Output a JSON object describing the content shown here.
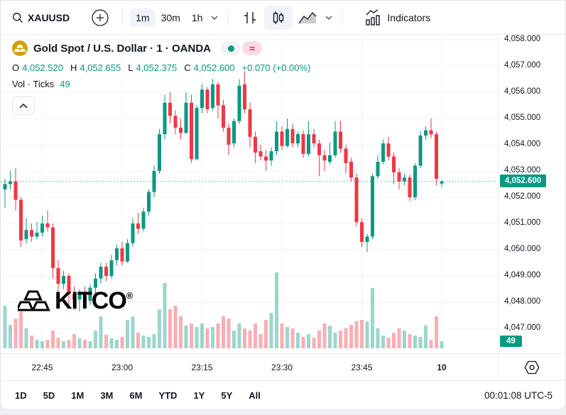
{
  "header": {
    "symbol": "XAUUSD",
    "timeframes": [
      "1m",
      "30m",
      "1h"
    ],
    "selected_timeframe": "1m",
    "indicators_label": "Indicators"
  },
  "legend": {
    "title": "Gold Spot / U.S. Dollar · 1 · OANDA",
    "status_approx": "≈",
    "ohlc": {
      "o_label": "O",
      "o_value": "4,052.520",
      "h_label": "H",
      "h_value": "4,052.655",
      "l_label": "L",
      "l_value": "4,052.375",
      "c_label": "C",
      "c_value": "4,052.600",
      "change": "+0.070 (+0.00%)"
    },
    "vol_label": "Vol · Ticks",
    "vol_value": "49"
  },
  "watermark": {
    "text": "KITCO",
    "reg": "®"
  },
  "price_scale": {
    "current": {
      "label": "4,052.600",
      "value": 4052.6
    },
    "volume_badge": "49",
    "ticks": [
      {
        "label": "4,058.000",
        "value": 4058
      },
      {
        "label": "4,057.000",
        "value": 4057
      },
      {
        "label": "4,056.000",
        "value": 4056
      },
      {
        "label": "4,055.000",
        "value": 4055
      },
      {
        "label": "4,054.000",
        "value": 4054
      },
      {
        "label": "4,053.000",
        "value": 4053
      },
      {
        "label": "4,052.000",
        "value": 4052
      },
      {
        "label": "4,051.000",
        "value": 4051
      },
      {
        "label": "4,050.000",
        "value": 4050
      },
      {
        "label": "4,049.000",
        "value": 4049
      },
      {
        "label": "4,048.000",
        "value": 4048
      },
      {
        "label": "4,047.000",
        "value": 4047
      }
    ]
  },
  "time_scale": {
    "labels": [
      {
        "text": "22:45",
        "idx": 7,
        "bold": false
      },
      {
        "text": "23:00",
        "idx": 22,
        "bold": false
      },
      {
        "text": "23:15",
        "idx": 37,
        "bold": false
      },
      {
        "text": "23:30",
        "idx": 52,
        "bold": false
      },
      {
        "text": "23:45",
        "idx": 67,
        "bold": false
      },
      {
        "text": "10",
        "idx": 82,
        "bold": true
      }
    ]
  },
  "footer": {
    "ranges": [
      "1D",
      "5D",
      "1M",
      "3M",
      "6M",
      "YTD",
      "1Y",
      "5Y",
      "All"
    ],
    "clock": "00:01:08 UTC-5"
  },
  "colors": {
    "up": "#089981",
    "down": "#f23645",
    "vol_up": "rgba(8,153,129,0.40)",
    "vol_down": "rgba(242,54,69,0.40)",
    "grid": "#f0f3fa",
    "badge_bg": "#089981",
    "gold": "#d2a106"
  },
  "chart_data": {
    "type": "candlestick",
    "title": "Gold Spot / U.S. Dollar · 1 · OANDA",
    "symbol": "XAUUSD",
    "interval": "1m",
    "exchange": "OANDA",
    "time_start": "22:38",
    "time_end": "00:00",
    "x_tick_labels": [
      "22:45",
      "23:00",
      "23:15",
      "23:30",
      "23:45",
      "10"
    ],
    "ylim": [
      4046.1,
      4058.2
    ],
    "grid": true,
    "last_price": 4052.6,
    "last_volume_ticks": 49,
    "series_note": "candles are [open, high, low, close, volume_ticks], one per minute from 22:38 to 00:00",
    "candles": [
      [
        4052.3,
        4052.7,
        4051.6,
        4052.5,
        300
      ],
      [
        4052.5,
        4053.0,
        4052.3,
        4052.6,
        165
      ],
      [
        4052.6,
        4053.1,
        4051.5,
        4051.9,
        210
      ],
      [
        4051.9,
        4052.0,
        4050.1,
        4050.35,
        260
      ],
      [
        4050.4,
        4051.2,
        4050.25,
        4050.75,
        140
      ],
      [
        4050.75,
        4051.0,
        4050.3,
        4050.5,
        90
      ],
      [
        4050.5,
        4051.05,
        4050.4,
        4050.65,
        60
      ],
      [
        4050.65,
        4051.3,
        4050.5,
        4051.0,
        50
      ],
      [
        4051.0,
        4051.5,
        4050.7,
        4050.85,
        60
      ],
      [
        4050.85,
        4051.0,
        4048.9,
        4049.3,
        125
      ],
      [
        4049.3,
        4049.6,
        4048.3,
        4048.7,
        75
      ],
      [
        4048.7,
        4049.2,
        4048.5,
        4049.0,
        50
      ],
      [
        4049.0,
        4049.1,
        4047.9,
        4048.3,
        60
      ],
      [
        4048.3,
        4048.6,
        4047.7,
        4048.1,
        100
      ],
      [
        4048.1,
        4048.5,
        4047.65,
        4048.4,
        70
      ],
      [
        4048.4,
        4048.6,
        4047.9,
        4048.05,
        60
      ],
      [
        4048.05,
        4048.7,
        4047.9,
        4048.55,
        50
      ],
      [
        4048.55,
        4049.1,
        4048.3,
        4048.9,
        125
      ],
      [
        4048.9,
        4049.5,
        4048.7,
        4049.35,
        225
      ],
      [
        4049.35,
        4049.5,
        4048.8,
        4049.0,
        95
      ],
      [
        4049.0,
        4049.8,
        4048.9,
        4049.6,
        70
      ],
      [
        4049.6,
        4050.2,
        4049.4,
        4050.05,
        60
      ],
      [
        4050.05,
        4050.3,
        4049.4,
        4049.55,
        80
      ],
      [
        4049.55,
        4050.4,
        4049.5,
        4050.25,
        200
      ],
      [
        4050.25,
        4051.2,
        4050.1,
        4051.0,
        225
      ],
      [
        4051.0,
        4051.4,
        4050.6,
        4050.8,
        110
      ],
      [
        4050.8,
        4051.6,
        4050.7,
        4051.45,
        90
      ],
      [
        4051.45,
        4052.3,
        4051.3,
        4052.2,
        80
      ],
      [
        4052.2,
        4053.2,
        4052.0,
        4053.0,
        100
      ],
      [
        4053.0,
        4054.6,
        4052.9,
        4054.4,
        275
      ],
      [
        4054.4,
        4055.9,
        4054.2,
        4055.6,
        460
      ],
      [
        4055.6,
        4056.0,
        4054.8,
        4055.1,
        275
      ],
      [
        4055.1,
        4055.3,
        4054.4,
        4054.65,
        300
      ],
      [
        4054.65,
        4055.0,
        4054.2,
        4054.45,
        225
      ],
      [
        4054.45,
        4056.0,
        4054.4,
        4055.6,
        160
      ],
      [
        4055.6,
        4055.9,
        4053.3,
        4053.45,
        175
      ],
      [
        4053.45,
        4055.5,
        4053.4,
        4055.4,
        150
      ],
      [
        4055.4,
        4056.3,
        4055.2,
        4056.1,
        175
      ],
      [
        4056.1,
        4056.2,
        4055.2,
        4055.35,
        140
      ],
      [
        4055.4,
        4056.5,
        4055.3,
        4056.3,
        150
      ],
      [
        4056.3,
        4056.4,
        4055.0,
        4055.5,
        175
      ],
      [
        4055.5,
        4055.7,
        4054.5,
        4054.65,
        225
      ],
      [
        4054.65,
        4054.8,
        4053.6,
        4054.0,
        210
      ],
      [
        4054.05,
        4055.0,
        4053.9,
        4054.9,
        125
      ],
      [
        4054.9,
        4056.5,
        4054.8,
        4056.25,
        175
      ],
      [
        4056.3,
        4056.8,
        4055.2,
        4055.35,
        140
      ],
      [
        4055.35,
        4055.6,
        4053.9,
        4054.3,
        125
      ],
      [
        4054.3,
        4054.5,
        4053.3,
        4053.7,
        175
      ],
      [
        4053.75,
        4054.0,
        4053.4,
        4053.55,
        100
      ],
      [
        4053.55,
        4053.8,
        4053.0,
        4053.4,
        200
      ],
      [
        4053.4,
        4053.9,
        4053.2,
        4053.75,
        250
      ],
      [
        4053.75,
        4054.9,
        4053.6,
        4054.5,
        535
      ],
      [
        4054.5,
        4054.7,
        4053.8,
        4053.95,
        175
      ],
      [
        4053.95,
        4055.0,
        4053.9,
        4054.6,
        150
      ],
      [
        4054.6,
        4054.8,
        4053.9,
        4054.05,
        140
      ],
      [
        4054.05,
        4054.5,
        4053.9,
        4054.4,
        110
      ],
      [
        4054.4,
        4054.55,
        4053.5,
        4053.65,
        80
      ],
      [
        4053.65,
        4054.9,
        4053.55,
        4054.4,
        100
      ],
      [
        4054.4,
        4054.6,
        4053.9,
        4054.05,
        75
      ],
      [
        4054.05,
        4054.2,
        4052.8,
        4053.6,
        125
      ],
      [
        4053.6,
        4053.8,
        4053.0,
        4053.4,
        175
      ],
      [
        4053.35,
        4054.1,
        4053.25,
        4053.6,
        160
      ],
      [
        4053.6,
        4054.9,
        4053.5,
        4054.5,
        110
      ],
      [
        4054.5,
        4054.9,
        4053.7,
        4053.85,
        125
      ],
      [
        4053.85,
        4054.0,
        4052.9,
        4053.3,
        140
      ],
      [
        4053.35,
        4053.5,
        4052.6,
        4052.75,
        165
      ],
      [
        4052.75,
        4052.9,
        4050.9,
        4051.05,
        190
      ],
      [
        4051.05,
        4051.2,
        4050.1,
        4050.3,
        200
      ],
      [
        4050.3,
        4050.6,
        4049.9,
        4050.5,
        190
      ],
      [
        4050.5,
        4052.9,
        4050.4,
        4052.8,
        425
      ],
      [
        4052.8,
        4053.6,
        4052.7,
        4053.35,
        140
      ],
      [
        4053.35,
        4054.2,
        4053.25,
        4054.05,
        90
      ],
      [
        4054.05,
        4054.3,
        4053.4,
        4053.55,
        75
      ],
      [
        4053.55,
        4053.7,
        4052.5,
        4052.95,
        110
      ],
      [
        4052.95,
        4053.1,
        4052.3,
        4052.6,
        140
      ],
      [
        4052.6,
        4052.9,
        4052.45,
        4052.75,
        125
      ],
      [
        4052.75,
        4052.85,
        4051.85,
        4052.0,
        100
      ],
      [
        4052.0,
        4053.3,
        4051.9,
        4053.2,
        90
      ],
      [
        4053.2,
        4054.5,
        4053.1,
        4054.35,
        80
      ],
      [
        4054.35,
        4054.7,
        4054.2,
        4054.55,
        160
      ],
      [
        4054.55,
        4055.0,
        4054.25,
        4054.4,
        60
      ],
      [
        4054.4,
        4054.5,
        4052.45,
        4052.7,
        225
      ],
      [
        4052.52,
        4052.655,
        4052.375,
        4052.6,
        49
      ]
    ]
  }
}
